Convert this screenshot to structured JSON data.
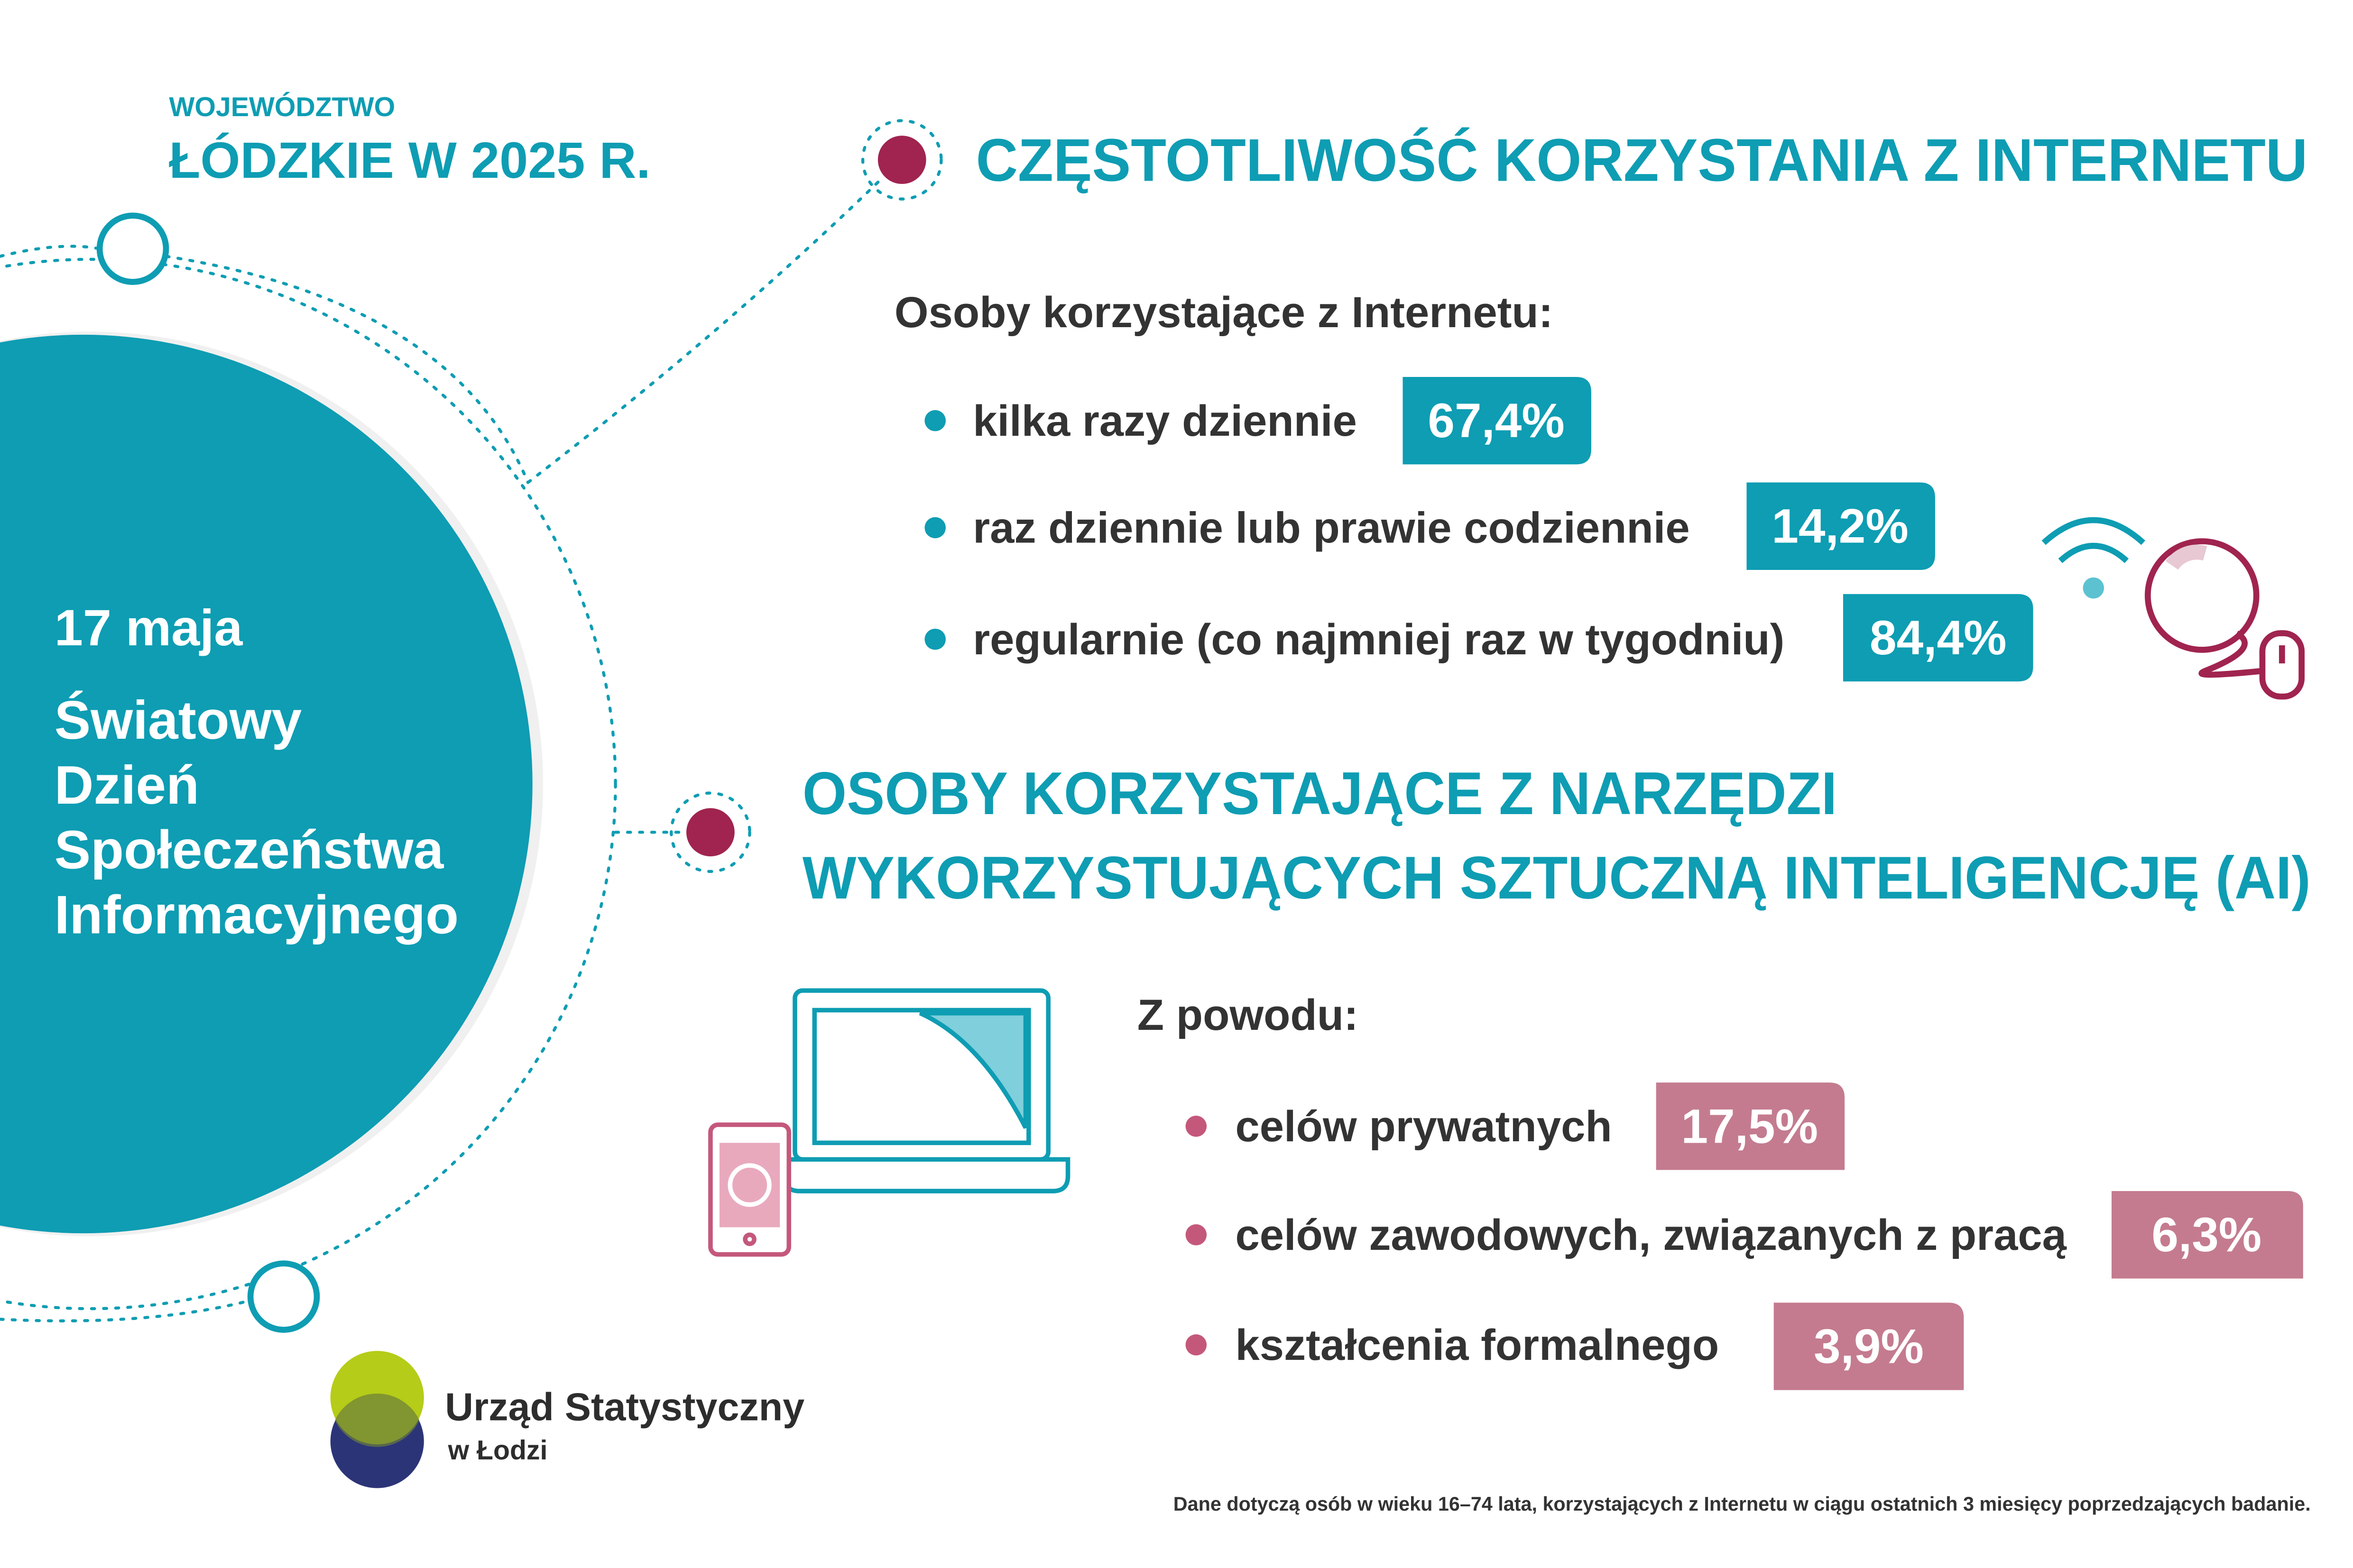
{
  "header": {
    "region_line1": "WOJEWÓDZTWO",
    "region_line2": "ŁÓDZKIE W 2025 R."
  },
  "circle": {
    "date": "17 maja",
    "title_lines": [
      "Światowy",
      "Dzień",
      "Społeczeństwa",
      "Informacyjnego"
    ]
  },
  "section1": {
    "title": "CZĘSTOTLIWOŚĆ KORZYSTANIA Z INTERNETU",
    "intro": "Osoby korzystające z Internetu:",
    "items": [
      {
        "label": "kilka razy dziennie",
        "value": "67,4%"
      },
      {
        "label": "raz dziennie lub prawie codziennie",
        "value": "14,2%"
      },
      {
        "label": "regularnie (co najmniej raz w tygodniu)",
        "value": "84,4%"
      }
    ]
  },
  "section2": {
    "title_lines": [
      "OSOBY KORZYSTAJĄCE Z NARZĘDZI",
      "WYKORZYSTUJĄCYCH SZTUCZNĄ INTELIGENCJĘ (AI)"
    ],
    "intro": "Z powodu:",
    "items": [
      {
        "label": "celów prywatnych",
        "value": "17,5%"
      },
      {
        "label": "celów zawodowych, związanych z pracą",
        "value": "6,3%"
      },
      {
        "label": "kształcenia formalnego",
        "value": "3,9%"
      }
    ]
  },
  "logo": {
    "name": "Urząd Statystyczny",
    "sub": "w Łodzi"
  },
  "footnote": "Dane dotyczą osób w wieku 16–74 lata, korzystających z Internetu w ciągu ostatnich 3 miesięcy poprzedzających badanie."
}
